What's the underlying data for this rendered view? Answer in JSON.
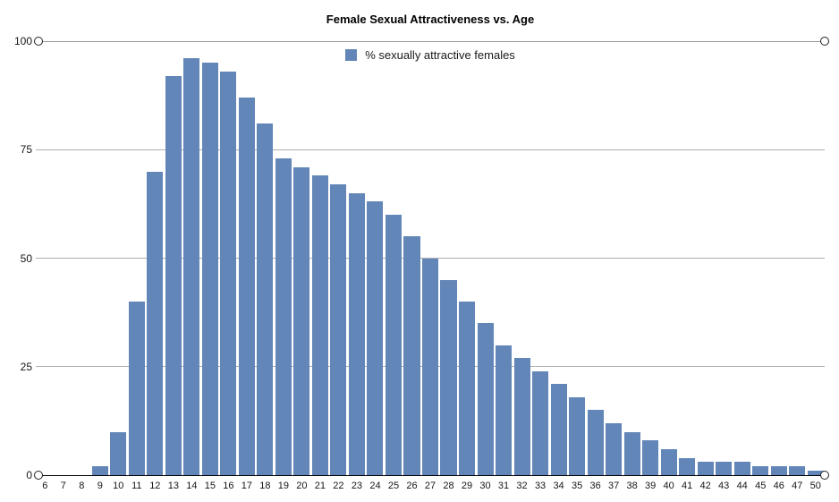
{
  "chart": {
    "title": "Female Sexual Attractiveness vs. Age",
    "legend_label": "% sexually attractive females"
  },
  "colors": {
    "bar": "#6286b8",
    "gridline": "#aeaeae",
    "zero_axis": "#000000",
    "text": "#161616"
  },
  "chart_data": {
    "type": "bar",
    "title": "Female Sexual Attractiveness vs. Age",
    "legend": [
      "% sexually attractive females"
    ],
    "legend_position": "top-center",
    "xlabel": "",
    "ylabel": "",
    "ylim": [
      0,
      100
    ],
    "yticks": [
      0,
      25,
      50,
      75,
      100
    ],
    "grid": true,
    "bar_color": "#6286b8",
    "categories": [
      "6",
      "7",
      "8",
      "9",
      "10",
      "11",
      "12",
      "13",
      "14",
      "15",
      "16",
      "17",
      "18",
      "19",
      "20",
      "21",
      "22",
      "23",
      "24",
      "25",
      "26",
      "27",
      "28",
      "29",
      "30",
      "31",
      "32",
      "33",
      "34",
      "35",
      "36",
      "37",
      "38",
      "39",
      "40",
      "41",
      "42",
      "43",
      "44",
      "45",
      "46",
      "47",
      "50"
    ],
    "values": [
      0,
      0,
      0,
      2,
      10,
      40,
      70,
      92,
      96,
      95,
      93,
      87,
      81,
      73,
      71,
      69,
      67,
      65,
      63,
      60,
      55,
      50,
      45,
      40,
      35,
      30,
      27,
      24,
      21,
      18,
      15,
      12,
      10,
      8,
      6,
      4,
      3,
      3,
      3,
      2,
      2,
      2,
      1
    ]
  }
}
